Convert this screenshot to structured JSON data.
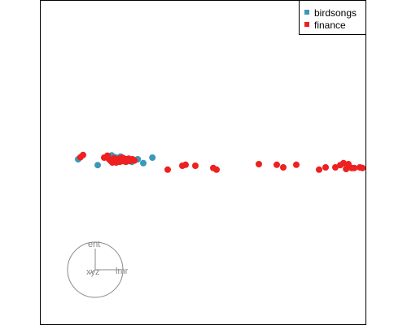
{
  "chart_data": {
    "type": "scatter",
    "xlim": [
      0,
      100
    ],
    "ylim": [
      0,
      100
    ],
    "grid": false,
    "legend_position": "top-right",
    "series": [
      {
        "name": "birdsongs",
        "color": "#3a98b9",
        "points": [
          [
            11.5,
            51.0
          ],
          [
            17.5,
            49.2
          ],
          [
            21.8,
            52.2
          ],
          [
            23.0,
            51.6
          ],
          [
            23.8,
            51.0
          ],
          [
            24.5,
            51.8
          ],
          [
            25.2,
            50.6
          ],
          [
            26.0,
            50.4
          ],
          [
            26.8,
            50.4
          ],
          [
            27.3,
            51.0
          ],
          [
            28.0,
            50.2
          ],
          [
            29.8,
            51.0
          ],
          [
            31.5,
            49.8
          ],
          [
            34.3,
            51.5
          ]
        ]
      },
      {
        "name": "finance",
        "color": "#ee2020",
        "points": [
          [
            12.2,
            51.6
          ],
          [
            13.0,
            52.3
          ],
          [
            19.5,
            51.5
          ],
          [
            20.5,
            52.1
          ],
          [
            21.0,
            51.0
          ],
          [
            21.5,
            50.5
          ],
          [
            22.0,
            50.0
          ],
          [
            22.5,
            51.3
          ],
          [
            22.8,
            50.5
          ],
          [
            23.2,
            50.0
          ],
          [
            23.5,
            50.8
          ],
          [
            24.0,
            51.2
          ],
          [
            24.3,
            50.2
          ],
          [
            24.8,
            50.8
          ],
          [
            25.1,
            51.5
          ],
          [
            25.5,
            50.4
          ],
          [
            25.9,
            51.1
          ],
          [
            26.2,
            50.2
          ],
          [
            26.6,
            50.8
          ],
          [
            27.0,
            51.2
          ],
          [
            27.5,
            50.5
          ],
          [
            28.2,
            51.0
          ],
          [
            28.8,
            50.6
          ],
          [
            39.0,
            47.8
          ],
          [
            43.5,
            49.0
          ],
          [
            44.5,
            49.3
          ],
          [
            47.5,
            49.0
          ],
          [
            53.0,
            48.3
          ],
          [
            54.0,
            47.8
          ],
          [
            67.0,
            49.5
          ],
          [
            72.5,
            49.3
          ],
          [
            74.5,
            48.5
          ],
          [
            78.5,
            49.3
          ],
          [
            85.5,
            47.8
          ],
          [
            87.5,
            48.5
          ],
          [
            90.5,
            48.5
          ],
          [
            92.0,
            49.2
          ],
          [
            93.0,
            49.8
          ],
          [
            93.8,
            48.0
          ],
          [
            94.5,
            49.5
          ],
          [
            95.5,
            48.3
          ],
          [
            96.3,
            48.3
          ],
          [
            98.0,
            48.5
          ],
          [
            98.8,
            48.3
          ]
        ]
      }
    ],
    "axis_glyph": {
      "labels": [
        "ent",
        "lmr",
        "xyz"
      ],
      "color": "#888888"
    }
  }
}
